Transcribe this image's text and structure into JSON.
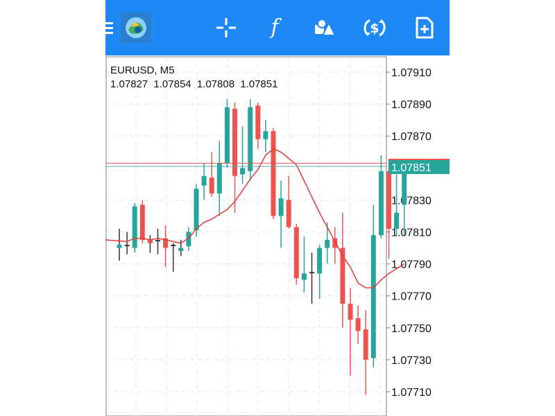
{
  "toolbar": {
    "icons": [
      "menu-icon",
      "app-logo-icon",
      "crosshair-icon",
      "indicators-icon",
      "objects-icon",
      "trade-icon",
      "new-order-icon"
    ],
    "indicator_glyph": "f",
    "accent": "#1e88f5"
  },
  "chart_header": {
    "symbol": "EURUSD, M5",
    "open": "1.07827",
    "high": "1.07854",
    "low": "1.07808",
    "close": "1.07851"
  },
  "colors": {
    "bull": "#26a69a",
    "bear": "#ef5350",
    "ma": "#e53935",
    "grid": "#e4e4e4",
    "price_badge": "#26a69a"
  },
  "chart_data": {
    "type": "candlestick",
    "symbol": "EURUSD",
    "timeframe": "M5",
    "ylim": [
      1.077,
      1.0792
    ],
    "y_ticks": [
      "1.07910",
      "1.07890",
      "1.07870",
      "1.07830",
      "1.07810",
      "1.07790",
      "1.07770",
      "1.07750",
      "1.07730",
      "1.07710"
    ],
    "grid": true,
    "current_price": "1.07851",
    "ask_line": 1.07853,
    "candles": [
      {
        "o": 1.078,
        "h": 1.07812,
        "l": 1.07792,
        "c": 1.07802
      },
      {
        "o": 1.07801,
        "h": 1.0781,
        "l": 1.07796,
        "c": 1.07802
      },
      {
        "o": 1.078,
        "h": 1.07828,
        "l": 1.07797,
        "c": 1.07826
      },
      {
        "o": 1.07827,
        "h": 1.0783,
        "l": 1.07803,
        "c": 1.07805
      },
      {
        "o": 1.07805,
        "h": 1.07808,
        "l": 1.07797,
        "c": 1.07803
      },
      {
        "o": 1.07804,
        "h": 1.07812,
        "l": 1.07796,
        "c": 1.07805
      },
      {
        "o": 1.07806,
        "h": 1.07814,
        "l": 1.07788,
        "c": 1.078
      },
      {
        "o": 1.07801,
        "h": 1.07803,
        "l": 1.07785,
        "c": 1.07802
      },
      {
        "o": 1.07798,
        "h": 1.07805,
        "l": 1.07795,
        "c": 1.078
      },
      {
        "o": 1.07801,
        "h": 1.07813,
        "l": 1.07798,
        "c": 1.0781
      },
      {
        "o": 1.07811,
        "h": 1.0784,
        "l": 1.07807,
        "c": 1.07837
      },
      {
        "o": 1.07839,
        "h": 1.07853,
        "l": 1.0783,
        "c": 1.07845
      },
      {
        "o": 1.07844,
        "h": 1.0786,
        "l": 1.07832,
        "c": 1.07834
      },
      {
        "o": 1.07834,
        "h": 1.07867,
        "l": 1.0782,
        "c": 1.07853
      },
      {
        "o": 1.07853,
        "h": 1.07893,
        "l": 1.0785,
        "c": 1.07888
      },
      {
        "o": 1.07887,
        "h": 1.07891,
        "l": 1.07822,
        "c": 1.07845
      },
      {
        "o": 1.07846,
        "h": 1.07876,
        "l": 1.0784,
        "c": 1.0785
      },
      {
        "o": 1.07848,
        "h": 1.07893,
        "l": 1.07842,
        "c": 1.07888
      },
      {
        "o": 1.07889,
        "h": 1.07891,
        "l": 1.07862,
        "c": 1.07868
      },
      {
        "o": 1.07868,
        "h": 1.0788,
        "l": 1.0786,
        "c": 1.07873
      },
      {
        "o": 1.07873,
        "h": 1.07875,
        "l": 1.07818,
        "c": 1.0782
      },
      {
        "o": 1.0782,
        "h": 1.07842,
        "l": 1.078,
        "c": 1.07831
      },
      {
        "o": 1.0783,
        "h": 1.07845,
        "l": 1.07812,
        "c": 1.07813
      },
      {
        "o": 1.07813,
        "h": 1.07815,
        "l": 1.07777,
        "c": 1.07781
      },
      {
        "o": 1.0778,
        "h": 1.07807,
        "l": 1.07772,
        "c": 1.07784
      },
      {
        "o": 1.07784,
        "h": 1.07797,
        "l": 1.07765,
        "c": 1.07785
      },
      {
        "o": 1.07784,
        "h": 1.07802,
        "l": 1.07768,
        "c": 1.078
      },
      {
        "o": 1.078,
        "h": 1.07816,
        "l": 1.0779,
        "c": 1.07805
      },
      {
        "o": 1.07806,
        "h": 1.07813,
        "l": 1.0779,
        "c": 1.078
      },
      {
        "o": 1.078,
        "h": 1.07822,
        "l": 1.0775,
        "c": 1.07765
      },
      {
        "o": 1.07765,
        "h": 1.07775,
        "l": 1.0772,
        "c": 1.07755
      },
      {
        "o": 1.07756,
        "h": 1.07764,
        "l": 1.0774,
        "c": 1.07748
      },
      {
        "o": 1.07749,
        "h": 1.07761,
        "l": 1.07708,
        "c": 1.0773
      },
      {
        "o": 1.07731,
        "h": 1.07827,
        "l": 1.07725,
        "c": 1.07808
      },
      {
        "o": 1.07808,
        "h": 1.07858,
        "l": 1.07806,
        "c": 1.07848
      },
      {
        "o": 1.07848,
        "h": 1.07855,
        "l": 1.07793,
        "c": 1.07812
      },
      {
        "o": 1.07812,
        "h": 1.07846,
        "l": 1.07808,
        "c": 1.07822
      },
      {
        "o": 1.07827,
        "h": 1.07854,
        "l": 1.07808,
        "c": 1.07851
      }
    ],
    "ma": [
      1.07805,
      1.07804,
      1.07806,
      1.07806,
      1.07805,
      1.07806,
      1.07805,
      1.07804,
      1.07803,
      1.07806,
      1.07812,
      1.07816,
      1.07818,
      1.07821,
      1.07824,
      1.07829,
      1.07836,
      1.07843,
      1.07849,
      1.07858,
      1.07862,
      1.0786,
      1.07856,
      1.07852,
      1.07842,
      1.07832,
      1.07822,
      1.07813,
      1.07804,
      1.07795,
      1.07788,
      1.07778,
      1.07775,
      1.07775,
      1.0778,
      1.07784,
      1.07787,
      1.0779
    ]
  }
}
